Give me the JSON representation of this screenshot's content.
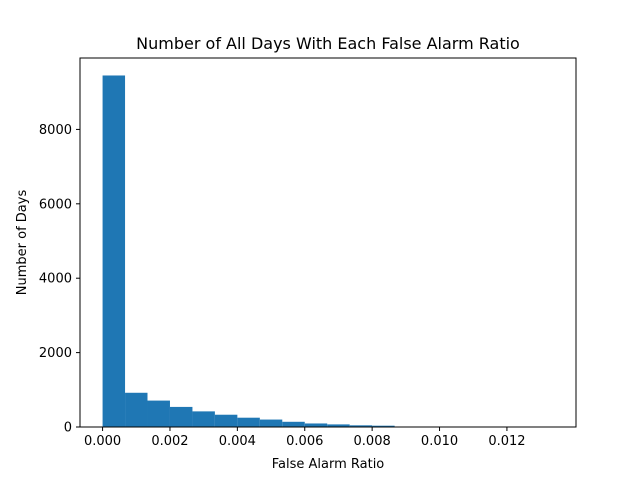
{
  "chart_data": {
    "type": "bar",
    "title": "Number of All Days With Each False Alarm Ratio",
    "xlabel": "False Alarm Ratio",
    "ylabel": "Number of Days",
    "xlim": [
      -0.00067,
      0.01405
    ],
    "ylim": [
      0,
      9920
    ],
    "bin_edges": [
      0.0,
      0.000667,
      0.001333,
      0.002,
      0.002667,
      0.003333,
      0.004,
      0.004667,
      0.005333,
      0.006,
      0.006667,
      0.007333,
      0.008,
      0.008667,
      0.009333,
      0.01,
      0.010667,
      0.011333,
      0.012,
      0.012667,
      0.013333
    ],
    "values": [
      9450,
      920,
      710,
      540,
      420,
      330,
      250,
      200,
      140,
      95,
      70,
      45,
      35,
      10,
      5,
      4,
      3,
      2,
      1,
      1
    ],
    "xticks": [
      0.0,
      0.002,
      0.004,
      0.006,
      0.008,
      0.01,
      0.012
    ],
    "xtick_labels": [
      "0.000",
      "0.002",
      "0.004",
      "0.006",
      "0.008",
      "0.010",
      "0.012"
    ],
    "yticks": [
      0,
      2000,
      4000,
      6000,
      8000
    ],
    "ytick_labels": [
      "0",
      "2000",
      "4000",
      "6000",
      "8000"
    ],
    "bar_color": "#1f77b4",
    "grid": false,
    "legend": false
  }
}
